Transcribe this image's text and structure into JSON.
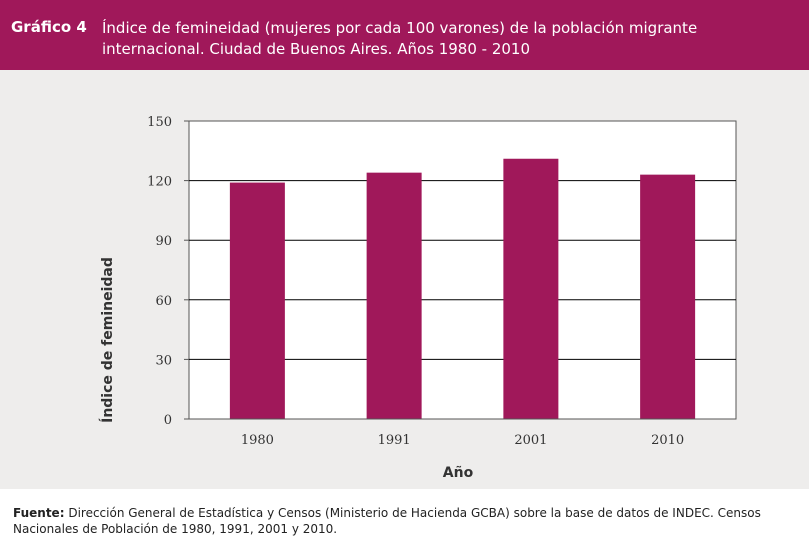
{
  "header": {
    "label": "Gráfico 4",
    "title": "Índice de femineidad (mujeres por cada 100 varones) de la población migrante internacional. Ciudad de Buenos Aires. Años 1980 - 2010"
  },
  "colors": {
    "accent": "#a0185a",
    "bar": "#a0185a",
    "panel_bg": "#eeedec",
    "plot_bg": "#ffffff",
    "grid": "#000000"
  },
  "chart_data": {
    "type": "bar",
    "categories": [
      "1980",
      "1991",
      "2001",
      "2010"
    ],
    "values": [
      119,
      124,
      131,
      123
    ],
    "title": "Índice de femineidad (mujeres por cada 100 varones) de la población migrante internacional. Ciudad de Buenos Aires. Años 1980 - 2010",
    "xlabel": "Año",
    "ylabel": "Índice de femineidad",
    "ylim": [
      0,
      150
    ],
    "yticks": [
      "0",
      "30",
      "60",
      "90",
      "120",
      "150"
    ],
    "grid": true,
    "legend": "none"
  },
  "source": {
    "label": "Fuente:",
    "text": "Dirección General de Estadística y Censos (Ministerio de Hacienda GCBA) sobre la base de datos de INDEC. Censos Nacionales de Población de 1980, 1991, 2001 y 2010."
  }
}
